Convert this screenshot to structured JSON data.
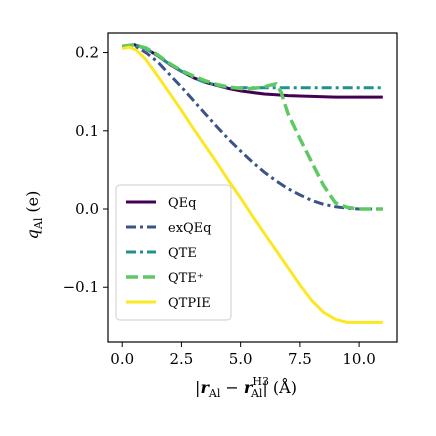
{
  "chart_data": {
    "type": "line",
    "xlabel": "|r_Al − r_Al^H3| (Å)",
    "ylabel": "q_Al (e)",
    "xlim": [
      -0.6,
      11.6
    ],
    "ylim": [
      -0.17,
      0.225
    ],
    "xticks": [
      {
        "v": 0.0,
        "label": "0.0"
      },
      {
        "v": 2.5,
        "label": "2.5"
      },
      {
        "v": 5.0,
        "label": "5.0"
      },
      {
        "v": 7.5,
        "label": "7.5"
      },
      {
        "v": 10.0,
        "label": "10.0"
      }
    ],
    "yticks": [
      {
        "v": 0.2,
        "label": "0.2"
      },
      {
        "v": 0.1,
        "label": "0.1"
      },
      {
        "v": 0.0,
        "label": "0.0"
      },
      {
        "v": -0.1,
        "label": "−0.1"
      }
    ],
    "grid": false,
    "legend_position": "lower-left",
    "series": [
      {
        "name": "QEq",
        "color": "#440154",
        "dash": "solid",
        "width": 3,
        "x": [
          0,
          0.5,
          1,
          1.5,
          2,
          2.5,
          3,
          3.5,
          4,
          4.5,
          5,
          5.5,
          6,
          6.5,
          7,
          8,
          9,
          10,
          11
        ],
        "y": [
          0.208,
          0.21,
          0.205,
          0.196,
          0.185,
          0.176,
          0.168,
          0.162,
          0.158,
          0.154,
          0.151,
          0.149,
          0.147,
          0.146,
          0.145,
          0.144,
          0.143,
          0.143,
          0.143
        ]
      },
      {
        "name": "exQEq",
        "color": "#3b528b",
        "dash": "dashdot",
        "width": 3,
        "x": [
          0,
          0.5,
          1,
          1.5,
          2,
          2.5,
          3,
          3.5,
          4,
          4.5,
          5,
          5.5,
          6,
          6.5,
          7,
          7.5,
          8,
          8.5,
          9,
          9.5,
          10,
          10.5,
          11
        ],
        "y": [
          0.208,
          0.209,
          0.2,
          0.188,
          0.172,
          0.156,
          0.139,
          0.122,
          0.105,
          0.089,
          0.074,
          0.06,
          0.047,
          0.036,
          0.026,
          0.018,
          0.011,
          0.006,
          0.003,
          0.001,
          0.0,
          0.0,
          0.0
        ]
      },
      {
        "name": "QTE",
        "color": "#21918c",
        "dash": "dashdot",
        "width": 3,
        "x": [
          0,
          0.5,
          1,
          1.5,
          2,
          2.5,
          3,
          3.5,
          4,
          4.5,
          5,
          5.5,
          6,
          6.5,
          7,
          8,
          9,
          10,
          11
        ],
        "y": [
          0.208,
          0.21,
          0.205,
          0.196,
          0.185,
          0.176,
          0.168,
          0.162,
          0.158,
          0.155,
          0.155,
          0.155,
          0.155,
          0.155,
          0.155,
          0.155,
          0.155,
          0.155,
          0.155
        ]
      },
      {
        "name": "QTE⁺",
        "color": "#5ec962",
        "dash": "dashed",
        "width": 3.5,
        "x": [
          0,
          0.5,
          1,
          1.5,
          2,
          2.5,
          3,
          3.5,
          4,
          4.5,
          5,
          5.5,
          6,
          6.2,
          6.5,
          6.7,
          7,
          7.5,
          8,
          8.5,
          9,
          9.5,
          10,
          11
        ],
        "y": [
          0.208,
          0.21,
          0.206,
          0.197,
          0.186,
          0.177,
          0.17,
          0.164,
          0.159,
          0.156,
          0.154,
          0.154,
          0.156,
          0.158,
          0.16,
          0.15,
          0.122,
          0.09,
          0.06,
          0.03,
          0.008,
          0.002,
          0.0,
          0.0
        ]
      },
      {
        "name": "QTPIE",
        "color": "#fde725",
        "dash": "solid",
        "width": 3,
        "x": [
          0,
          0.3,
          0.6,
          1,
          1.5,
          2,
          2.5,
          3,
          3.5,
          4,
          4.5,
          5,
          5.5,
          6,
          6.5,
          7,
          7.5,
          8,
          8.5,
          9,
          9.5,
          10,
          10.5,
          11
        ],
        "y": [
          0.205,
          0.207,
          0.203,
          0.191,
          0.17,
          0.148,
          0.126,
          0.103,
          0.081,
          0.059,
          0.036,
          0.014,
          -0.009,
          -0.031,
          -0.053,
          -0.075,
          -0.097,
          -0.117,
          -0.132,
          -0.141,
          -0.145,
          -0.145,
          -0.145,
          -0.145
        ]
      }
    ],
    "legend": [
      {
        "label": "QEq"
      },
      {
        "label": "exQEq"
      },
      {
        "label": "QTE"
      },
      {
        "label": "QTE⁺"
      },
      {
        "label": "QTPIE"
      }
    ]
  }
}
